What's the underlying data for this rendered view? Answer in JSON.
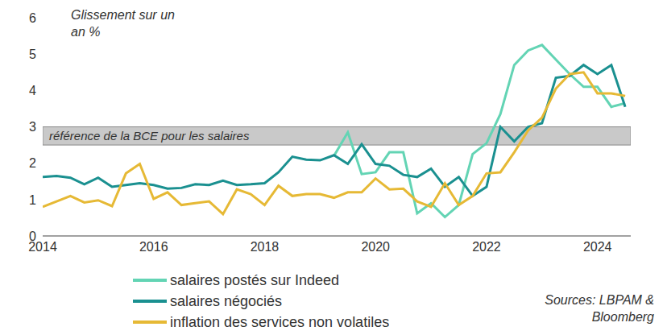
{
  "chart_data": {
    "type": "line",
    "y_label": "Glissement sur un an %",
    "source": "Sources: LBPAM & Bloomberg",
    "xlim": [
      2014,
      2024.6
    ],
    "xticks": [
      2014,
      2016,
      2018,
      2020,
      2022,
      2024
    ],
    "ylim": [
      0,
      6
    ],
    "yticks": [
      0,
      1,
      2,
      3,
      4,
      5,
      6
    ],
    "grid": false,
    "legend": "bottom",
    "reference_band": {
      "label": "référence de la BCE pour les salaires",
      "y1": 2.5,
      "y2": 3
    },
    "x": [
      2014,
      2014.25,
      2014.5,
      2014.75,
      2015,
      2015.25,
      2015.5,
      2015.75,
      2016,
      2016.25,
      2016.5,
      2016.75,
      2017,
      2017.25,
      2017.5,
      2017.75,
      2018,
      2018.25,
      2018.5,
      2018.75,
      2019,
      2019.25,
      2019.5,
      2019.75,
      2020,
      2020.25,
      2020.5,
      2020.75,
      2021,
      2021.25,
      2021.5,
      2021.75,
      2022,
      2022.25,
      2022.5,
      2022.75,
      2023,
      2023.25,
      2023.5,
      2023.75,
      2024,
      2024.25,
      2024.5
    ],
    "series": [
      {
        "name": "salaires postés sur Indeed",
        "color": "#63d4b4",
        "values": [
          null,
          null,
          null,
          null,
          null,
          null,
          null,
          null,
          null,
          null,
          null,
          null,
          null,
          null,
          null,
          null,
          null,
          null,
          null,
          null,
          null,
          2.2,
          2.85,
          1.7,
          1.75,
          2.3,
          2.3,
          0.62,
          0.9,
          0.52,
          0.85,
          2.25,
          2.55,
          3.35,
          4.7,
          5.1,
          5.25,
          4.85,
          4.45,
          4.1,
          4.1,
          3.55,
          3.65
        ]
      },
      {
        "name": "salaires négociés",
        "color": "#1a9090",
        "values": [
          1.62,
          1.65,
          1.6,
          1.42,
          1.6,
          1.35,
          1.4,
          1.45,
          1.4,
          1.3,
          1.32,
          1.42,
          1.4,
          1.52,
          1.4,
          1.42,
          1.45,
          1.75,
          2.18,
          2.1,
          2.08,
          2.22,
          1.98,
          2.52,
          1.98,
          1.93,
          1.68,
          1.62,
          1.85,
          1.35,
          1.62,
          1.1,
          1.35,
          3.0,
          2.6,
          3.0,
          3.1,
          4.35,
          4.4,
          4.7,
          4.45,
          4.7,
          3.55
        ]
      },
      {
        "name": "inflation des services non volatiles",
        "color": "#e6b935",
        "values": [
          0.8,
          0.95,
          1.1,
          0.92,
          0.98,
          0.82,
          1.72,
          1.98,
          1.02,
          1.2,
          0.85,
          0.9,
          0.95,
          0.6,
          1.28,
          1.15,
          0.85,
          1.38,
          1.1,
          1.15,
          1.15,
          1.05,
          1.2,
          1.2,
          1.58,
          1.28,
          1.3,
          0.95,
          0.8,
          1.45,
          0.85,
          1.1,
          1.72,
          1.75,
          2.3,
          2.9,
          3.25,
          4.05,
          4.45,
          4.5,
          3.92,
          3.92,
          3.85
        ]
      }
    ]
  }
}
